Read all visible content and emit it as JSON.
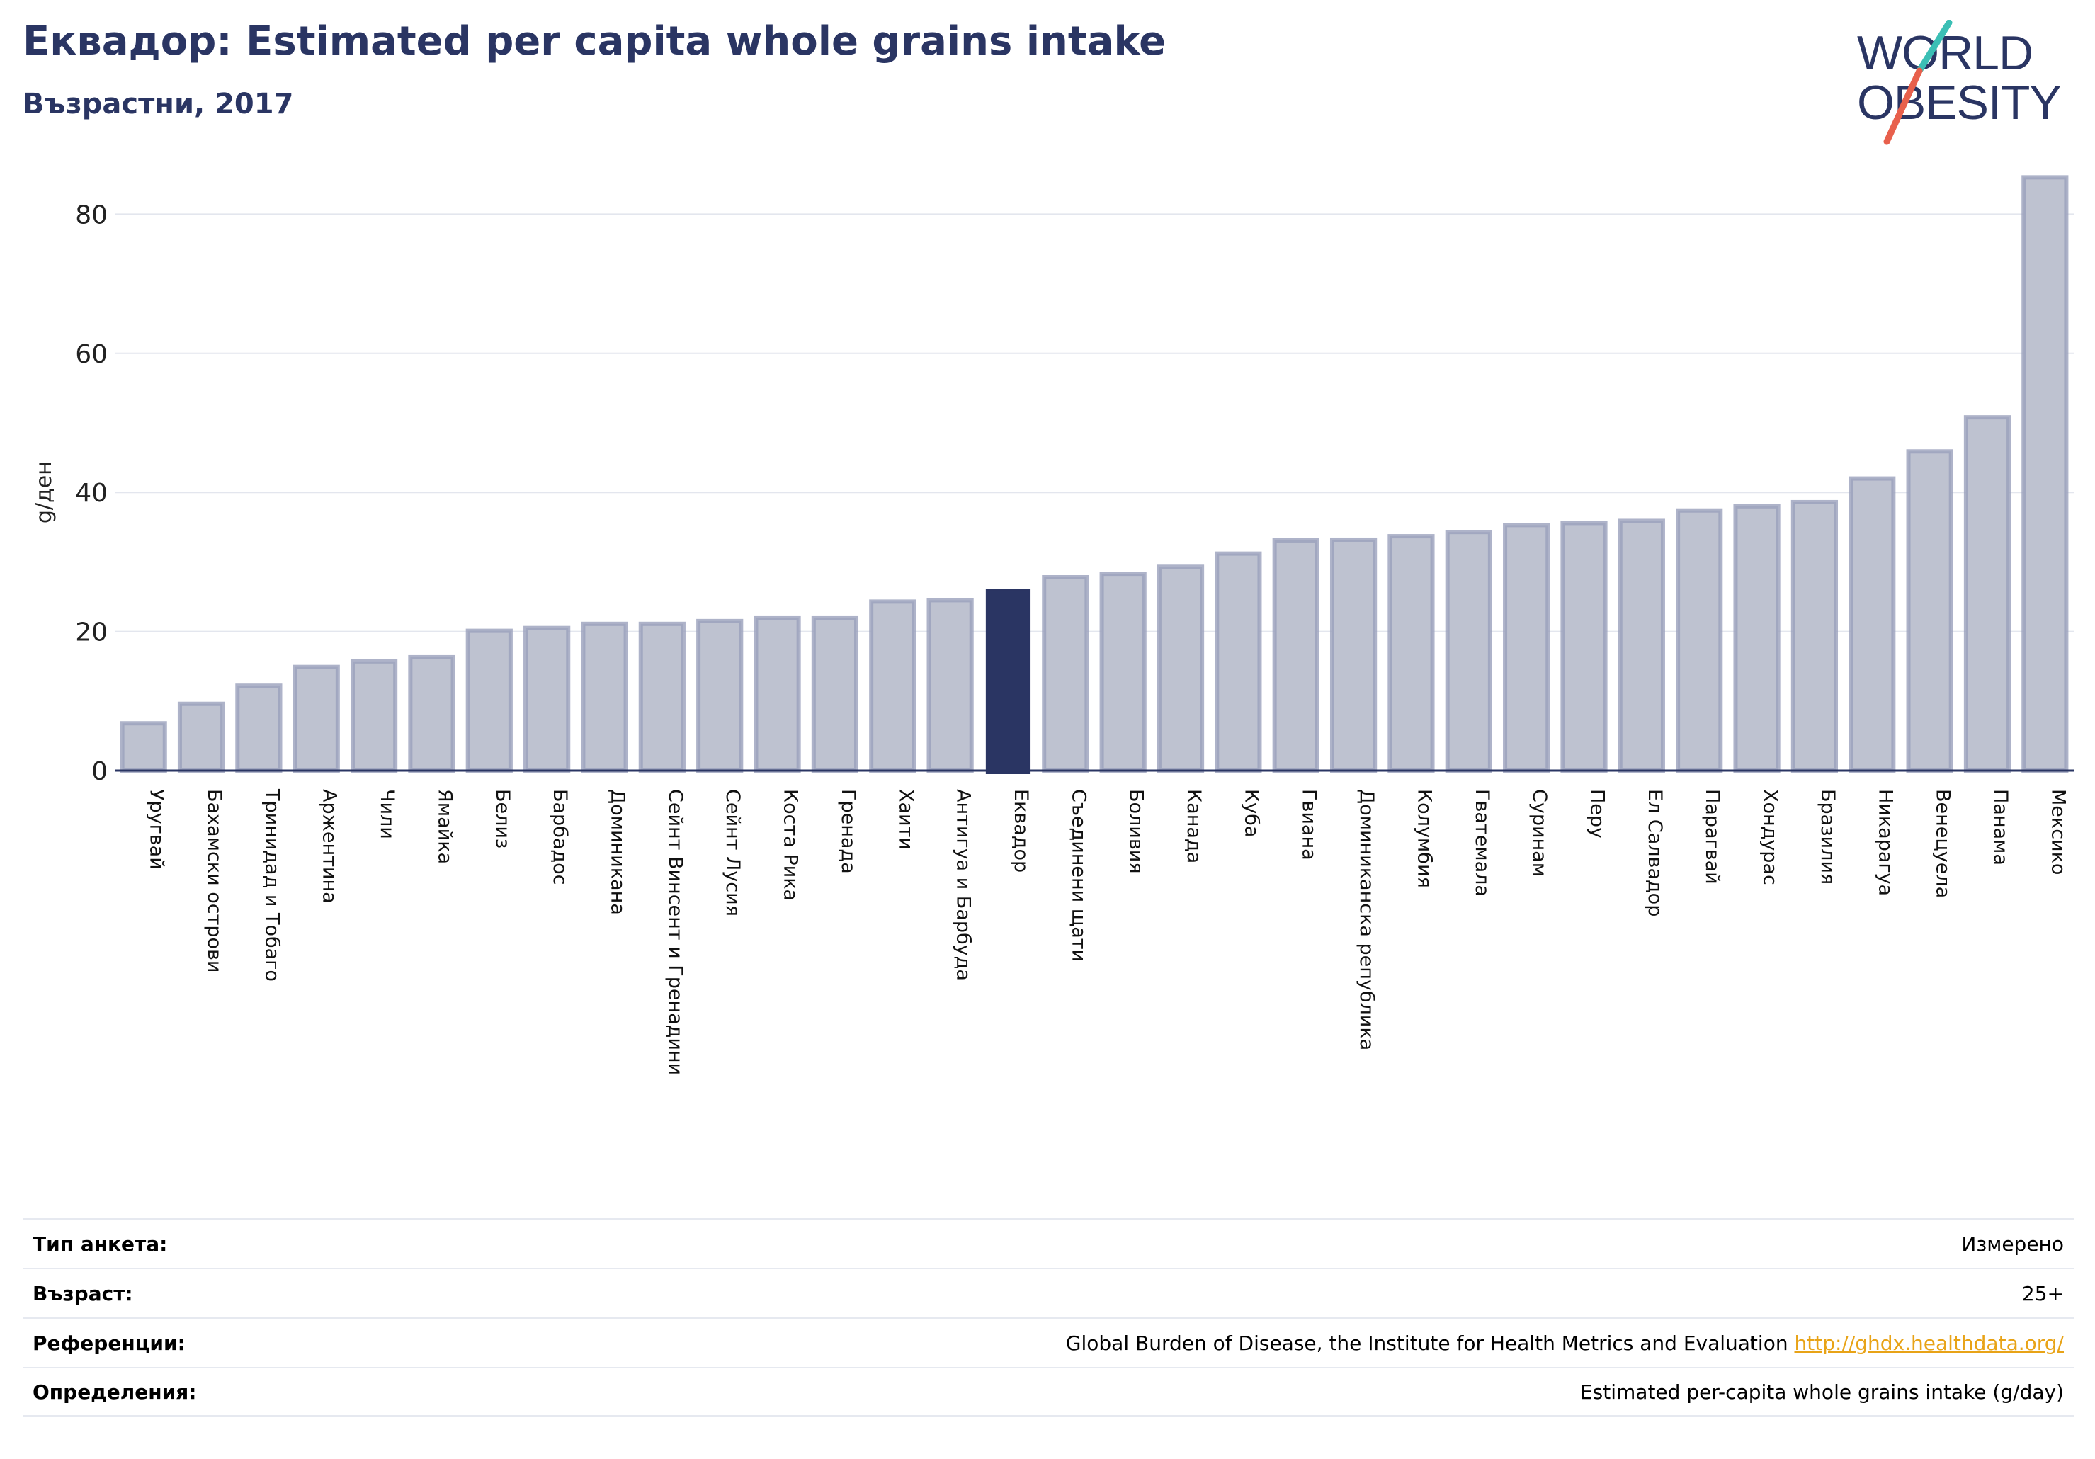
{
  "header": {
    "title": "Еквадор: Estimated per capita whole grains intake",
    "subtitle": "Възрастни, 2017"
  },
  "logo": {
    "line1": "WORLD",
    "line2": "OBESITY",
    "colors": {
      "text": "#2a3563",
      "slash_teal": "#3bbfb5",
      "slash_red": "#e8604c"
    }
  },
  "colors": {
    "bar": "#bec2d0",
    "bar_stroke": "#9aa0bb",
    "highlight": "#2a3563",
    "grid": "#e3e6ee",
    "axis": "#2a3563"
  },
  "chart_data": {
    "type": "bar",
    "ylabel": "g/ден",
    "ylim": [
      0,
      88
    ],
    "yticks": [
      0,
      20,
      40,
      60,
      80
    ],
    "highlight": "Еквадор",
    "categories": [
      "Уругвай",
      "Бахамски острови",
      "Тринидад и Тобаго",
      "Аржентина",
      "Чили",
      "Ямайка",
      "Белиз",
      "Барбадос",
      "Доминикана",
      "Сейнт Винсент и Гренадини",
      "Сейнт Лусия",
      "Коста Рика",
      "Гренада",
      "Хаити",
      "Антигуа и Барбуда",
      "Еквадор",
      "Съединени щати",
      "Боливия",
      "Канада",
      "Куба",
      "Гвиана",
      "Доминиканска република",
      "Колумбия",
      "Гватемала",
      "Суринам",
      "Перу",
      "Ел Салвадор",
      "Парагвай",
      "Хондурас",
      "Бразилия",
      "Никарагуа",
      "Венецуела",
      "Панама",
      "Мексико"
    ],
    "values": [
      6.8,
      9.6,
      12.2,
      14.9,
      15.7,
      16.3,
      20.1,
      20.5,
      21.1,
      21.1,
      21.5,
      21.9,
      21.9,
      24.3,
      24.5,
      26.0,
      27.8,
      28.3,
      29.3,
      31.2,
      33.1,
      33.2,
      33.7,
      34.3,
      35.3,
      35.6,
      35.9,
      37.4,
      38.0,
      38.6,
      42.0,
      45.9,
      50.8,
      85.3
    ]
  },
  "info": {
    "rows": [
      {
        "label": "Тип анкета:",
        "value": "Измерено"
      },
      {
        "label": "Възраст:",
        "value": "25+"
      },
      {
        "label": "Референции:",
        "value": "Global Burden of Disease, the Institute for Health Metrics and Evaluation",
        "link": "http://ghdx.healthdata.org/"
      },
      {
        "label": "Определения:",
        "value": "Estimated per-capita whole grains intake (g/day)"
      }
    ]
  }
}
